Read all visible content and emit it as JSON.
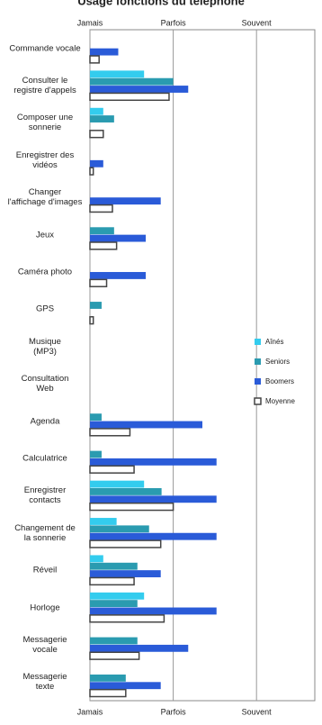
{
  "chart_data": {
    "type": "hbar",
    "title": "Usage fonctions du téléphone",
    "categories": [
      "Commande vocale",
      "Consulter le\nregistre d'appels",
      "Composer une\nsonnerie",
      "Enregistrer des\nvidéos",
      "Changer\nl'affichage d'images",
      "Jeux",
      "Caméra photo",
      "GPS",
      "Musique\n(MP3)",
      "Consultation\nWeb",
      "Agenda",
      "Calculatrice",
      "Enregistrer\ncontacts",
      "Changement de\nla sonnerie",
      "Réveil",
      "Horloge",
      "Messagerie\nvocale",
      "Messagerie\ntexte"
    ],
    "series": [
      {
        "name": "Aînés",
        "color": "#33ccee",
        "values": [
          1,
          1.65,
          1.16,
          1,
          1,
          1,
          1,
          1,
          1,
          1,
          1,
          1,
          1.65,
          1.32,
          1.16,
          1.65,
          1,
          1
        ]
      },
      {
        "name": "Seniors",
        "color": "#2a9bb0",
        "values": [
          1,
          2.0,
          1.29,
          1,
          1,
          1.29,
          1,
          1.14,
          1,
          1,
          1.14,
          1.14,
          1.86,
          1.71,
          1.57,
          1.57,
          1.57,
          1.43
        ]
      },
      {
        "name": "Boomers",
        "color": "#2a5bd8",
        "values": [
          1.34,
          2.18,
          1,
          1.16,
          1.85,
          1.67,
          1.67,
          1,
          1,
          1,
          2.35,
          2.52,
          2.52,
          2.52,
          1.85,
          2.52,
          2.18,
          1.85
        ]
      },
      {
        "name": "Moyenne",
        "color": "#ffffff",
        "values": [
          1.11,
          1.95,
          1.16,
          1.04,
          1.27,
          1.32,
          1.2,
          1.04,
          1,
          1,
          1.48,
          1.53,
          2.0,
          1.85,
          1.53,
          1.89,
          1.59,
          1.43
        ]
      }
    ],
    "xlim": [
      1,
      3.7
    ],
    "xticks": [
      {
        "value": 1,
        "label": "Jamais"
      },
      {
        "value": 2,
        "label": "Parfois"
      },
      {
        "value": 3,
        "label": "Souvent"
      }
    ],
    "legend": "right"
  }
}
